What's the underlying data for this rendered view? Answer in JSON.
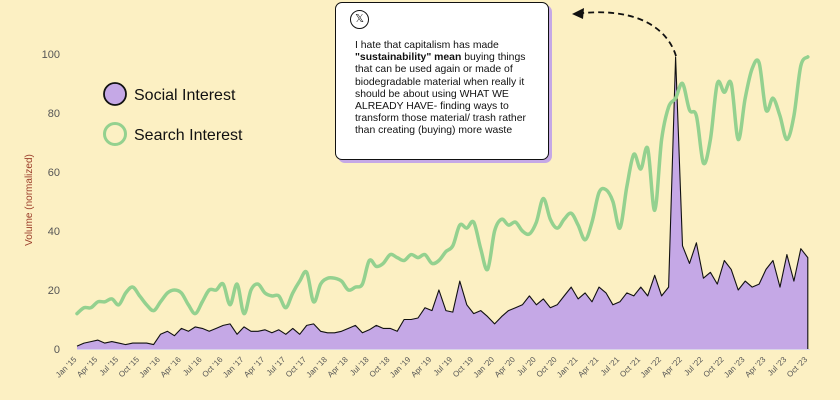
{
  "chart_data": {
    "type": "area+line",
    "title": "",
    "xlabel": "",
    "ylabel": "Volume (normalized)",
    "ylim": [
      0,
      100
    ],
    "yticks": [
      "0",
      "20",
      "40",
      "60",
      "80",
      "100"
    ],
    "start_month": "Jan 2015",
    "xtick_labels": [
      "Jan '15",
      "Apr '15",
      "Jul '15",
      "Oct '15",
      "Jan '16",
      "Apr '16",
      "Jul '16",
      "Oct '16",
      "Jan '17",
      "Apr '17",
      "Jul '17",
      "Oct '17",
      "Jan '18",
      "Apr '18",
      "Jul '18",
      "Oct '18",
      "Jan '19",
      "Apr '19",
      "Jul '19",
      "Oct '19",
      "Jan '20",
      "Apr '20",
      "Jul '20",
      "Oct '20",
      "Jan '21",
      "Apr '21",
      "Jul '21",
      "Oct '21",
      "Jan '22",
      "Apr '22",
      "Jul '22",
      "Oct '22",
      "Jan '23",
      "Apr '23",
      "Jul '23",
      "Oct '23"
    ],
    "legend": {
      "placement": "top-left"
    },
    "series": [
      {
        "name": "Social Interest",
        "type": "area",
        "color": "#c5a8e6",
        "values": [
          1,
          2,
          2.5,
          3,
          2,
          2.5,
          2,
          1.5,
          2,
          2,
          2,
          1.5,
          5,
          6,
          4.5,
          7,
          6,
          7.5,
          7,
          6,
          7,
          8,
          8.5,
          5,
          7.5,
          6,
          6,
          6.5,
          5.5,
          6.5,
          5,
          7,
          5,
          8,
          8.5,
          6,
          5.5,
          5.5,
          6,
          7,
          8,
          5.5,
          6.5,
          8,
          7,
          7,
          6,
          10,
          10,
          10.5,
          14,
          13,
          20,
          13,
          12.5,
          23,
          15,
          12,
          13,
          11,
          8.5,
          11,
          13,
          14,
          15,
          18,
          15,
          17,
          14,
          15,
          18,
          21,
          17,
          19,
          16,
          21,
          19,
          15,
          16,
          19,
          18,
          21,
          18,
          25,
          18,
          21,
          99,
          35,
          29,
          36,
          24,
          26,
          22,
          30,
          27,
          20,
          23,
          21,
          22,
          27,
          30,
          21,
          32,
          23,
          34,
          31
        ]
      },
      {
        "name": "Search Interest",
        "type": "line",
        "color": "#94d18f",
        "values": [
          12,
          14,
          14,
          16,
          16,
          17,
          15,
          19,
          21,
          18,
          15,
          13,
          16,
          19,
          20,
          19,
          15,
          12,
          16,
          20,
          20,
          22,
          15,
          22,
          12,
          20,
          22,
          19,
          18,
          18,
          14,
          19,
          23,
          26,
          16,
          22,
          24,
          24,
          23,
          20,
          21,
          22,
          30,
          28,
          29,
          32,
          31,
          30,
          32,
          31,
          32,
          29,
          30,
          33,
          35,
          42,
          41,
          43,
          34,
          27,
          40,
          44,
          42,
          43,
          40,
          39,
          43,
          51,
          44,
          41,
          44,
          46,
          42,
          37,
          43,
          53,
          54,
          50,
          41,
          55,
          66,
          61,
          68,
          47,
          71,
          82,
          85,
          90,
          81,
          79,
          63,
          71,
          90,
          87,
          90,
          71,
          85,
          95,
          97,
          81,
          85,
          79,
          71,
          79,
          96,
          99
        ]
      }
    ],
    "annotation": {
      "icon": "x-logo-icon",
      "text_bold": "\"sustainability\" mean",
      "text_before": "I hate that capitalism has made",
      "text_after": "buying things that can be used again or made of biodegradable material when really it should be about using WHAT WE ALREADY HAVE- finding ways to transform those material/ trash rather than creating (buying) more waste",
      "points_to": "Mar '22"
    }
  },
  "colors": {
    "background": "#fcf0c3",
    "social": "#c5a8e6",
    "search": "#94d18f",
    "ylabel": "#9b3d2a"
  }
}
